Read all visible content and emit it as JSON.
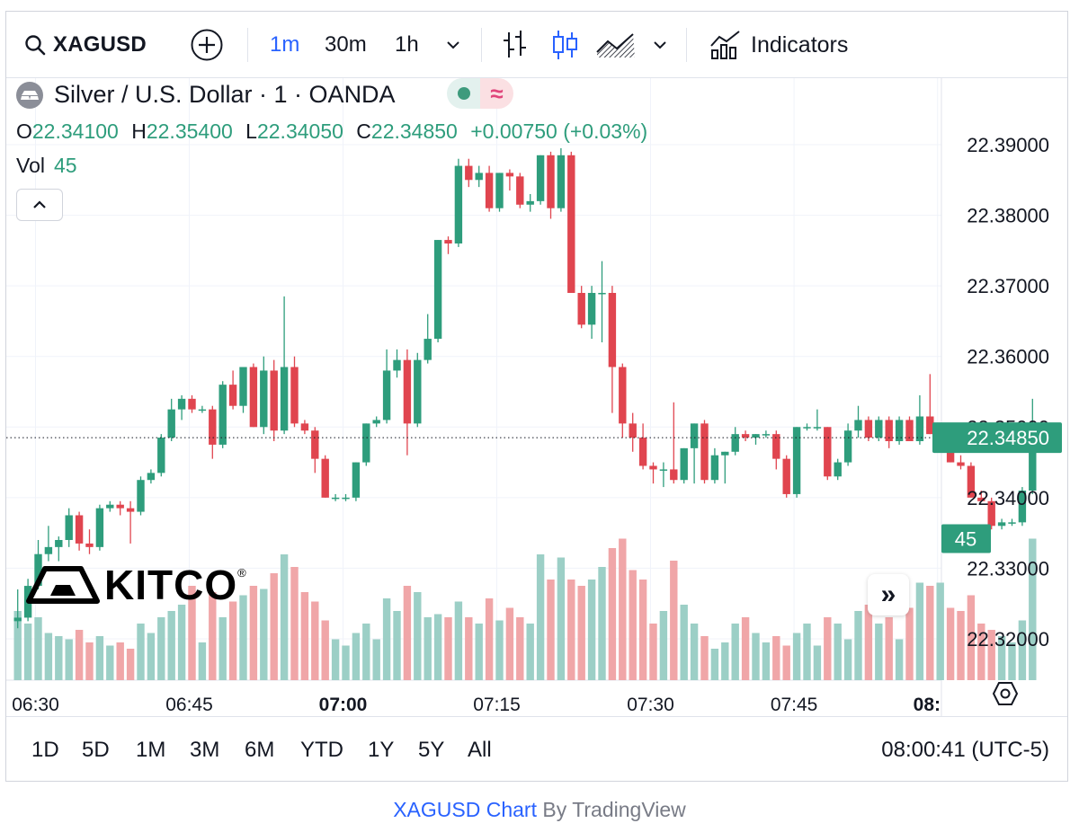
{
  "toolbar": {
    "symbol": "XAGUSD",
    "intervals": [
      "1m",
      "30m",
      "1h"
    ],
    "active_interval": "1m",
    "indicators_label": "Indicators",
    "icons": [
      "search-icon",
      "add-symbol-icon",
      "chevron-down-icon",
      "bar-chart-icon",
      "candle-chart-icon",
      "area-chart-icon",
      "indicators-icon"
    ]
  },
  "legend": {
    "title": "Silver / U.S. Dollar · 1 · OANDA",
    "o_label": "O",
    "o_value": "22.34100",
    "h_label": "H",
    "h_value": "22.35400",
    "l_label": "L",
    "l_value": "22.34050",
    "c_label": "C",
    "c_value": "22.34850",
    "change": "+0.00750 (+0.03%)",
    "vol_label": "Vol",
    "vol_value": "45",
    "pill_symbol": "≈"
  },
  "watermark": {
    "text": "KITCO",
    "mark": "®"
  },
  "colors": {
    "up": "#2e9d7c",
    "down": "#e0454f",
    "up_vol": "#9ccfc6",
    "down_vol": "#f0a6a8",
    "accent": "#2962ff"
  },
  "chart_data": {
    "type": "candlestick",
    "symbol": "XAGUSD",
    "interval": "1m",
    "ylim": [
      22.316,
      22.3968
    ],
    "y_ticks": [
      "22.39000",
      "22.38000",
      "22.37000",
      "22.36000",
      "22.35000",
      "22.34000",
      "22.33000",
      "22.32000"
    ],
    "x_ticks": [
      "06:30",
      "06:45",
      "07:00",
      "07:15",
      "07:30",
      "07:45",
      "08:"
    ],
    "last_price_label": "22.34850",
    "last_volume_label": "45",
    "last_price": 22.3485,
    "candles": [
      [
        22.3225,
        22.327,
        22.3215,
        22.323,
        22
      ],
      [
        22.323,
        22.3285,
        22.3225,
        22.3275,
        18
      ],
      [
        22.3275,
        22.334,
        22.327,
        22.332,
        20
      ],
      [
        22.332,
        22.336,
        22.331,
        22.333,
        15
      ],
      [
        22.333,
        22.3345,
        22.331,
        22.334,
        14
      ],
      [
        22.334,
        22.3385,
        22.333,
        22.3375,
        13
      ],
      [
        22.3375,
        22.338,
        22.3325,
        22.3335,
        16
      ],
      [
        22.3335,
        22.3355,
        22.332,
        22.333,
        12
      ],
      [
        22.333,
        22.339,
        22.3325,
        22.3385,
        14
      ],
      [
        22.3385,
        22.3395,
        22.338,
        22.339,
        11
      ],
      [
        22.339,
        22.3395,
        22.3375,
        22.3385,
        12
      ],
      [
        22.3385,
        22.3395,
        22.3335,
        22.338,
        10
      ],
      [
        22.338,
        22.343,
        22.3375,
        22.3425,
        18
      ],
      [
        22.3425,
        22.344,
        22.342,
        22.3435,
        15
      ],
      [
        22.3435,
        22.349,
        22.343,
        22.3485,
        20
      ],
      [
        22.3485,
        22.354,
        22.348,
        22.3525,
        22
      ],
      [
        22.3525,
        22.3545,
        22.351,
        22.354,
        24
      ],
      [
        22.354,
        22.3545,
        22.352,
        22.3525,
        30
      ],
      [
        22.3525,
        22.353,
        22.352,
        22.3525,
        12
      ],
      [
        22.3525,
        22.353,
        22.3455,
        22.3475,
        28
      ],
      [
        22.3475,
        22.3565,
        22.347,
        22.356,
        20
      ],
      [
        22.356,
        22.358,
        22.3525,
        22.353,
        25
      ],
      [
        22.353,
        22.3585,
        22.352,
        22.3585,
        27
      ],
      [
        22.3585,
        22.359,
        22.35,
        22.35,
        30
      ],
      [
        22.35,
        22.36,
        22.349,
        22.358,
        29
      ],
      [
        22.358,
        22.3595,
        22.348,
        22.3495,
        34
      ],
      [
        22.3495,
        22.3685,
        22.349,
        22.3585,
        40
      ],
      [
        22.3585,
        22.36,
        22.35,
        22.3505,
        36
      ],
      [
        22.3505,
        22.351,
        22.349,
        22.3495,
        28
      ],
      [
        22.3495,
        22.35,
        22.3435,
        22.3455,
        25
      ],
      [
        22.3455,
        22.346,
        22.34,
        22.34,
        19
      ],
      [
        22.34,
        22.3405,
        22.3395,
        22.34,
        13
      ],
      [
        22.34,
        22.3405,
        22.3395,
        22.34,
        11
      ],
      [
        22.34,
        22.345,
        22.3395,
        22.345,
        15
      ],
      [
        22.345,
        22.3505,
        22.3445,
        22.3505,
        18
      ],
      [
        22.3505,
        22.3515,
        22.35,
        22.351,
        13
      ],
      [
        22.351,
        22.361,
        22.3505,
        22.358,
        26
      ],
      [
        22.358,
        22.361,
        22.357,
        22.3595,
        22
      ],
      [
        22.3595,
        22.361,
        22.346,
        22.3505,
        30
      ],
      [
        22.3505,
        22.3605,
        22.35,
        22.3595,
        28
      ],
      [
        22.3595,
        22.366,
        22.359,
        22.3625,
        20
      ],
      [
        22.3625,
        22.3765,
        22.362,
        22.3765,
        21
      ],
      [
        22.3765,
        22.377,
        22.3745,
        22.376,
        20
      ],
      [
        22.376,
        22.388,
        22.3755,
        22.387,
        25
      ],
      [
        22.387,
        22.388,
        22.384,
        22.385,
        20
      ],
      [
        22.385,
        22.387,
        22.384,
        22.386,
        18
      ],
      [
        22.386,
        22.387,
        22.3805,
        22.381,
        26
      ],
      [
        22.381,
        22.386,
        22.3805,
        22.386,
        19
      ],
      [
        22.386,
        22.3865,
        22.3835,
        22.3855,
        23
      ],
      [
        22.3855,
        22.386,
        22.381,
        22.3815,
        20
      ],
      [
        22.3815,
        22.383,
        22.3805,
        22.382,
        18
      ],
      [
        22.382,
        22.3885,
        22.3815,
        22.3885,
        40
      ],
      [
        22.3885,
        22.389,
        22.3795,
        22.381,
        32
      ],
      [
        22.381,
        22.3895,
        22.3805,
        22.3885,
        39
      ],
      [
        22.3885,
        22.389,
        22.369,
        22.369,
        32
      ],
      [
        22.369,
        22.37,
        22.364,
        22.3645,
        30
      ],
      [
        22.3645,
        22.37,
        22.3625,
        22.369,
        32
      ],
      [
        22.369,
        22.3735,
        22.362,
        22.369,
        36
      ],
      [
        22.369,
        22.37,
        22.352,
        22.3585,
        42
      ],
      [
        22.3585,
        22.359,
        22.3485,
        22.3505,
        45
      ],
      [
        22.3505,
        22.352,
        22.3465,
        22.3485,
        35
      ],
      [
        22.3485,
        22.3505,
        22.344,
        22.3445,
        32
      ],
      [
        22.3445,
        22.345,
        22.342,
        22.344,
        18
      ],
      [
        22.344,
        22.345,
        22.3415,
        22.344,
        22
      ],
      [
        22.344,
        22.3535,
        22.342,
        22.3425,
        38
      ],
      [
        22.3425,
        22.347,
        22.342,
        22.347,
        24
      ],
      [
        22.347,
        22.3505,
        22.342,
        22.3505,
        18
      ],
      [
        22.3505,
        22.351,
        22.342,
        22.3425,
        14
      ],
      [
        22.3425,
        22.347,
        22.342,
        22.346,
        10
      ],
      [
        22.346,
        22.3465,
        22.342,
        22.3465,
        12
      ],
      [
        22.3465,
        22.35,
        22.346,
        22.349,
        18
      ],
      [
        22.349,
        22.3495,
        22.348,
        22.3485,
        20
      ],
      [
        22.3485,
        22.349,
        22.3475,
        22.349,
        15
      ],
      [
        22.349,
        22.3495,
        22.3485,
        22.349,
        12
      ],
      [
        22.349,
        22.3495,
        22.344,
        22.3455,
        14
      ],
      [
        22.3455,
        22.346,
        22.34,
        22.3405,
        11
      ],
      [
        22.3405,
        22.35,
        22.34,
        22.35,
        15
      ],
      [
        22.35,
        22.3505,
        22.3495,
        22.35,
        18
      ],
      [
        22.35,
        22.3525,
        22.3495,
        22.35,
        11
      ],
      [
        22.35,
        22.35,
        22.3425,
        22.343,
        20
      ],
      [
        22.343,
        22.3455,
        22.3425,
        22.345,
        18
      ],
      [
        22.345,
        22.3505,
        22.3445,
        22.3495,
        13
      ],
      [
        22.3495,
        22.353,
        22.3485,
        22.351,
        22
      ],
      [
        22.351,
        22.3515,
        22.348,
        22.3485,
        24
      ],
      [
        22.3485,
        22.3515,
        22.348,
        22.351,
        18
      ],
      [
        22.351,
        22.3515,
        22.347,
        22.348,
        20
      ],
      [
        22.348,
        22.3515,
        22.3475,
        22.351,
        13
      ],
      [
        22.351,
        22.3515,
        22.348,
        22.348,
        23
      ],
      [
        22.348,
        22.3545,
        22.3475,
        22.3515,
        31
      ],
      [
        22.3515,
        22.3575,
        22.349,
        22.349,
        30
      ],
      [
        22.349,
        22.3505,
        22.3485,
        22.3495,
        31
      ],
      [
        22.3495,
        22.35,
        22.345,
        22.345,
        23
      ],
      [
        22.345,
        22.346,
        22.344,
        22.3445,
        22
      ],
      [
        22.3445,
        22.345,
        22.34,
        22.34,
        27
      ],
      [
        22.34,
        22.341,
        22.3395,
        22.3395,
        18
      ],
      [
        22.3395,
        22.34,
        22.3355,
        22.336,
        16
      ],
      [
        22.336,
        22.337,
        22.3355,
        22.3365,
        14
      ],
      [
        22.3365,
        22.337,
        22.336,
        22.3365,
        12
      ],
      [
        22.3365,
        22.3415,
        22.336,
        22.341,
        19
      ],
      [
        22.341,
        22.354,
        22.3405,
        22.3485,
        45
      ]
    ]
  },
  "bottombar": {
    "ranges": [
      "1D",
      "5D",
      "1M",
      "3M",
      "6M",
      "YTD",
      "1Y",
      "5Y",
      "All"
    ],
    "clock": "08:00:41 (UTC-5)"
  },
  "credit": {
    "link": "XAGUSD Chart",
    "by": " By TradingView"
  }
}
